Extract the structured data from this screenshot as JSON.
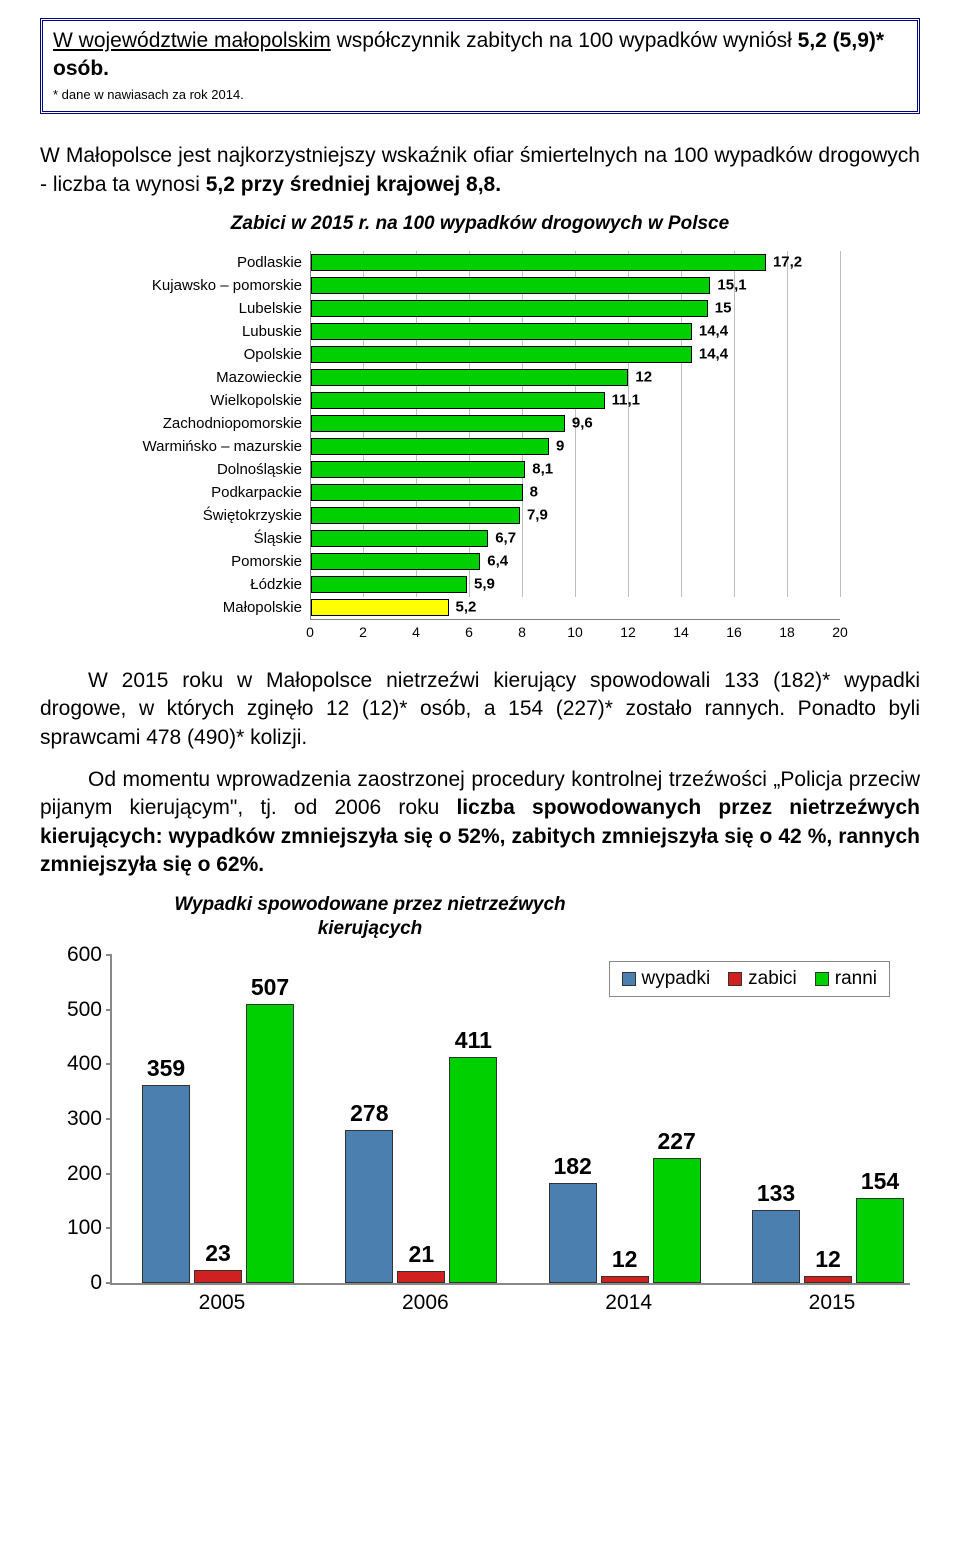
{
  "colors": {
    "green": "#00d000",
    "yellow": "#ffff00",
    "blue": "#4a7fb0",
    "red": "#d02020",
    "grid": "#bfbfbf",
    "axis": "#888888",
    "border": "#000080"
  },
  "info_box": {
    "line_a": "W województwie małopolskim",
    "line_b": " współczynnik zabitych na 100 wypadków wyniósł ",
    "line_c": "5,2 (5,9)* osób.",
    "footnote": "* dane w nawiasach za rok 2014."
  },
  "intro": {
    "text_a": "W Małopolsce jest najkorzystniejszy wskaźnik ofiar śmiertelnych na 100 wypadków drogowych - liczba ta wynosi ",
    "text_b": "5,2 przy średniej krajowej 8,8."
  },
  "hbar": {
    "title": "Zabici w 2015 r. na 100 wypadków drogowych w Polsce",
    "xmax": 20,
    "xtick_step": 2,
    "xticks": [
      "0",
      "2",
      "4",
      "6",
      "8",
      "10",
      "12",
      "14",
      "16",
      "18",
      "20"
    ],
    "label_fontsize": 15,
    "value_fontsize": 15,
    "bar_border": "#000000",
    "highlight_region": "Małopolskie",
    "rows": [
      {
        "label": "Podlaskie",
        "value": 17.2,
        "disp": "17,2"
      },
      {
        "label": "Kujawsko – pomorskie",
        "value": 15.1,
        "disp": "15,1"
      },
      {
        "label": "Lubelskie",
        "value": 15,
        "disp": "15"
      },
      {
        "label": "Lubuskie",
        "value": 14.4,
        "disp": "14,4"
      },
      {
        "label": "Opolskie",
        "value": 14.4,
        "disp": "14,4"
      },
      {
        "label": "Mazowieckie",
        "value": 12,
        "disp": "12"
      },
      {
        "label": "Wielkopolskie",
        "value": 11.1,
        "disp": "11,1"
      },
      {
        "label": "Zachodniopomorskie",
        "value": 9.6,
        "disp": "9,6"
      },
      {
        "label": "Warmińsko – mazurskie",
        "value": 9,
        "disp": "9"
      },
      {
        "label": "Dolnośląskie",
        "value": 8.1,
        "disp": "8,1"
      },
      {
        "label": "Podkarpackie",
        "value": 8,
        "disp": "8"
      },
      {
        "label": "Świętokrzyskie",
        "value": 7.9,
        "disp": "7,9"
      },
      {
        "label": "Śląskie",
        "value": 6.7,
        "disp": "6,7"
      },
      {
        "label": "Pomorskie",
        "value": 6.4,
        "disp": "6,4"
      },
      {
        "label": "Łódzkie",
        "value": 5.9,
        "disp": "5,9"
      },
      {
        "label": "Małopolskie",
        "value": 5.2,
        "disp": "5,2"
      }
    ]
  },
  "para2": {
    "text": "W 2015 roku w Małopolsce nietrzeźwi kierujący spowodowali 133 (182)* wypadki drogowe, w których zginęło 12 (12)* osób, a 154 (227)* zostało rannych. Ponadto byli sprawcami 478 (490)* kolizji."
  },
  "para3": {
    "text_a": "Od momentu wprowadzenia zaostrzonej procedury kontrolnej trzeźwości „Policja przeciw pijanym kierującym\", tj. od 2006 roku ",
    "bold_b": "liczba spowodowanych przez nietrzeźwych kierujących: wypadków zmniejszyła się o 52%, zabitych zmniejszyła się o 42 %, rannych zmniejszyła się o 62%."
  },
  "vchart": {
    "title": "Wypadki spowodowane przez nietrzeźwych kierujących",
    "ymax": 600,
    "ytick_step": 100,
    "yticks": [
      "0",
      "100",
      "200",
      "300",
      "400",
      "500",
      "600"
    ],
    "legend": [
      {
        "label": "wypadki",
        "color": "#4a7fb0"
      },
      {
        "label": "zabici",
        "color": "#d02020"
      },
      {
        "label": "ranni",
        "color": "#00d000"
      }
    ],
    "groups": [
      {
        "year": "2005",
        "bars": [
          {
            "v": 359,
            "c": "#4a7fb0"
          },
          {
            "v": 23,
            "c": "#d02020"
          },
          {
            "v": 507,
            "c": "#00d000"
          }
        ]
      },
      {
        "year": "2006",
        "bars": [
          {
            "v": 278,
            "c": "#4a7fb0"
          },
          {
            "v": 21,
            "c": "#d02020"
          },
          {
            "v": 411,
            "c": "#00d000"
          }
        ]
      },
      {
        "year": "2014",
        "bars": [
          {
            "v": 182,
            "c": "#4a7fb0"
          },
          {
            "v": 12,
            "c": "#d02020"
          },
          {
            "v": 227,
            "c": "#00d000"
          }
        ]
      },
      {
        "year": "2015",
        "bars": [
          {
            "v": 133,
            "c": "#4a7fb0"
          },
          {
            "v": 12,
            "c": "#d02020"
          },
          {
            "v": 154,
            "c": "#00d000"
          }
        ]
      }
    ]
  }
}
